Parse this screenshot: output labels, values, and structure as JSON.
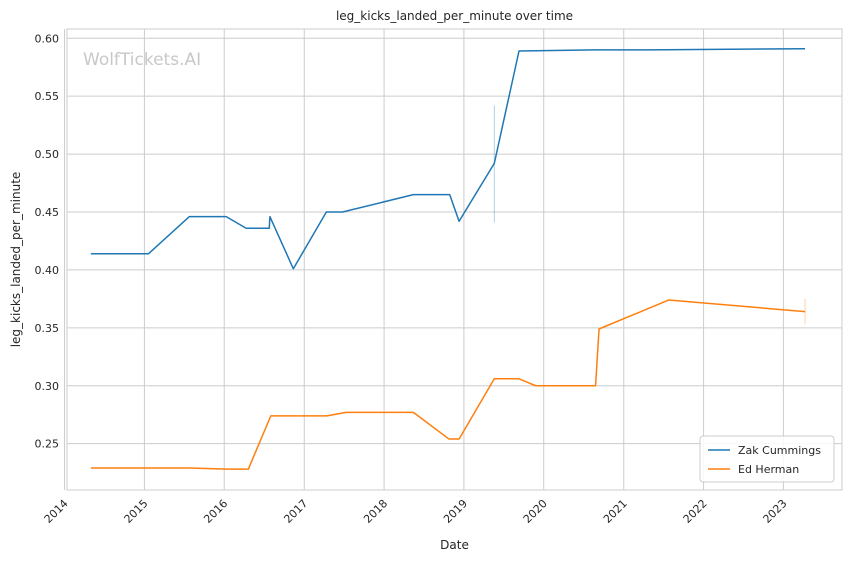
{
  "chart_data": {
    "type": "line",
    "title": "leg_kicks_landed_per_minute over time",
    "xlabel": "Date",
    "ylabel": "leg_kicks_landed_per_minute",
    "watermark": "WolfTickets.AI",
    "xlim": [
      "2014-01-12",
      "2023-09-26"
    ],
    "ylim": [
      0.21,
      0.608
    ],
    "x_ticks": [
      "2014",
      "2015",
      "2016",
      "2017",
      "2018",
      "2019",
      "2020",
      "2021",
      "2022",
      "2023"
    ],
    "y_ticks": [
      0.25,
      0.3,
      0.35,
      0.4,
      0.45,
      0.5,
      0.55,
      0.6
    ],
    "y_tick_labels": [
      "0.25",
      "0.30",
      "0.35",
      "0.40",
      "0.45",
      "0.50",
      "0.55",
      "0.60"
    ],
    "grid": true,
    "legend_position": "lower-right",
    "series": [
      {
        "name": "Zak Cummings",
        "color": "#1f77b4",
        "points": [
          [
            "2014-05-01",
            0.414
          ],
          [
            "2015-01-20",
            0.414
          ],
          [
            "2015-07-25",
            0.446
          ],
          [
            "2016-01-10",
            0.446
          ],
          [
            "2016-04-10",
            0.436
          ],
          [
            "2016-07-25",
            0.436
          ],
          [
            "2016-07-28",
            0.446
          ],
          [
            "2016-11-12",
            0.401
          ],
          [
            "2017-04-12",
            0.45
          ],
          [
            "2017-06-25",
            0.45
          ],
          [
            "2018-05-15",
            0.465
          ],
          [
            "2018-10-28",
            0.465
          ],
          [
            "2018-12-10",
            0.442
          ],
          [
            "2019-05-20",
            0.492
          ],
          [
            "2019-09-10",
            0.589
          ],
          [
            "2020-08-20",
            0.59
          ],
          [
            "2021-05-01",
            0.59
          ],
          [
            "2023-04-10",
            0.591
          ]
        ]
      },
      {
        "name": "Ed Herman",
        "color": "#ff7f0e",
        "points": [
          [
            "2014-05-01",
            0.229
          ],
          [
            "2015-07-25",
            0.229
          ],
          [
            "2016-01-10",
            0.228
          ],
          [
            "2016-04-20",
            0.228
          ],
          [
            "2016-08-01",
            0.274
          ],
          [
            "2017-04-15",
            0.274
          ],
          [
            "2017-07-10",
            0.277
          ],
          [
            "2018-05-15",
            0.277
          ],
          [
            "2018-10-25",
            0.254
          ],
          [
            "2018-12-10",
            0.254
          ],
          [
            "2019-05-20",
            0.306
          ],
          [
            "2019-09-10",
            0.306
          ],
          [
            "2019-11-25",
            0.3
          ],
          [
            "2020-08-25",
            0.3
          ],
          [
            "2020-09-10",
            0.349
          ],
          [
            "2021-07-25",
            0.374
          ],
          [
            "2023-04-10",
            0.364
          ]
        ]
      }
    ],
    "error_bars": [
      {
        "series": "Zak Cummings",
        "x": "2019-05-20",
        "low": 0.441,
        "high": 0.542
      },
      {
        "series": "Ed Herman",
        "x": "2023-04-10",
        "low": 0.353,
        "high": 0.375
      }
    ]
  }
}
